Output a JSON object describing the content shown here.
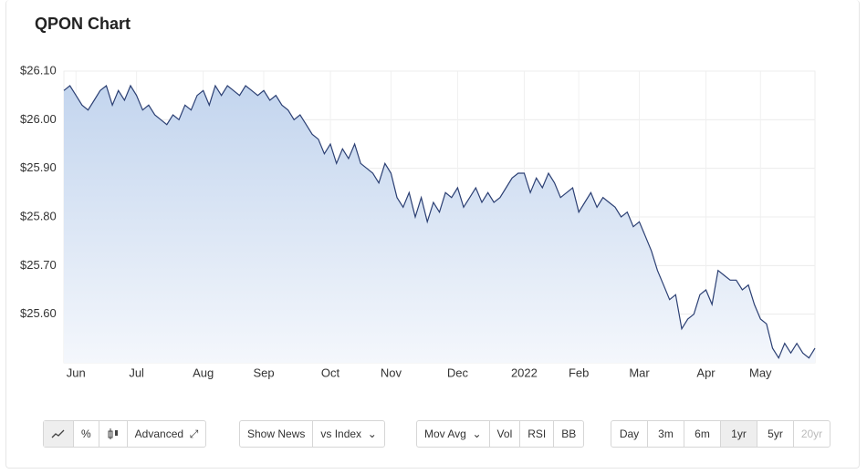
{
  "chart_data": {
    "type": "line",
    "title": "QPON Chart",
    "categories": [
      null,
      null,
      "Jun",
      null,
      null,
      null,
      null,
      null,
      null,
      null,
      null,
      null,
      "Jul",
      null,
      null,
      null,
      null,
      null,
      null,
      null,
      null,
      null,
      null,
      "Aug",
      null,
      null,
      null,
      null,
      null,
      null,
      null,
      null,
      null,
      "Sep",
      null,
      null,
      null,
      null,
      null,
      null,
      null,
      null,
      null,
      null,
      "Oct",
      null,
      null,
      null,
      null,
      null,
      null,
      null,
      null,
      null,
      "Nov",
      null,
      null,
      null,
      null,
      null,
      null,
      null,
      null,
      null,
      null,
      "Dec",
      null,
      null,
      null,
      null,
      null,
      null,
      null,
      null,
      null,
      null,
      "2022",
      null,
      null,
      null,
      null,
      null,
      null,
      null,
      null,
      "Feb",
      null,
      null,
      null,
      null,
      null,
      null,
      null,
      null,
      null,
      "Mar",
      null,
      null,
      null,
      null,
      null,
      null,
      null,
      null,
      null,
      null,
      "Apr",
      null,
      null,
      null,
      null,
      null,
      null,
      null,
      null,
      "May",
      null,
      null,
      null,
      null,
      null,
      null,
      null,
      null,
      null
    ],
    "values": [
      26.06,
      26.07,
      26.05,
      26.03,
      26.02,
      26.04,
      26.06,
      26.07,
      26.03,
      26.06,
      26.04,
      26.07,
      26.05,
      26.02,
      26.03,
      26.01,
      26.0,
      25.99,
      26.01,
      26.0,
      26.03,
      26.02,
      26.05,
      26.06,
      26.03,
      26.07,
      26.05,
      26.07,
      26.06,
      26.05,
      26.07,
      26.06,
      26.05,
      26.06,
      26.04,
      26.05,
      26.03,
      26.02,
      26.0,
      26.01,
      25.99,
      25.97,
      25.96,
      25.93,
      25.95,
      25.91,
      25.94,
      25.92,
      25.95,
      25.91,
      25.9,
      25.89,
      25.87,
      25.91,
      25.89,
      25.84,
      25.82,
      25.85,
      25.8,
      25.84,
      25.79,
      25.83,
      25.81,
      25.85,
      25.84,
      25.86,
      25.82,
      25.84,
      25.86,
      25.83,
      25.85,
      25.83,
      25.84,
      25.86,
      25.88,
      25.89,
      25.89,
      25.85,
      25.88,
      25.86,
      25.89,
      25.87,
      25.84,
      25.85,
      25.86,
      25.81,
      25.83,
      25.85,
      25.82,
      25.84,
      25.83,
      25.82,
      25.8,
      25.81,
      25.78,
      25.79,
      25.76,
      25.73,
      25.69,
      25.66,
      25.63,
      25.64,
      25.57,
      25.59,
      25.6,
      25.64,
      25.65,
      25.62,
      25.69,
      25.68,
      25.67,
      25.67,
      25.65,
      25.66,
      25.62,
      25.59,
      25.58,
      25.53,
      25.51,
      25.54,
      25.52,
      25.54,
      25.52,
      25.51,
      25.53
    ],
    "color": "#2b3f73",
    "ylim": [
      25.5,
      26.1
    ],
    "yticks": [
      {
        "value": 25.6,
        "label": "$25.60"
      },
      {
        "value": 25.7,
        "label": "$25.70"
      },
      {
        "value": 25.8,
        "label": "$25.80"
      },
      {
        "value": 25.9,
        "label": "$25.90"
      },
      {
        "value": 26.0,
        "label": "$26.00"
      },
      {
        "value": 26.1,
        "label": "$26.10"
      }
    ],
    "grid": true
  },
  "controls": {
    "percent": "%",
    "advanced": "Advanced",
    "show_news": "Show News",
    "vs_index": "vs Index",
    "mov_avg": "Mov Avg",
    "vol": "Vol",
    "rsi": "RSI",
    "bb": "BB",
    "ranges": [
      "Day",
      "3m",
      "6m",
      "1yr",
      "5yr",
      "20yr"
    ]
  }
}
